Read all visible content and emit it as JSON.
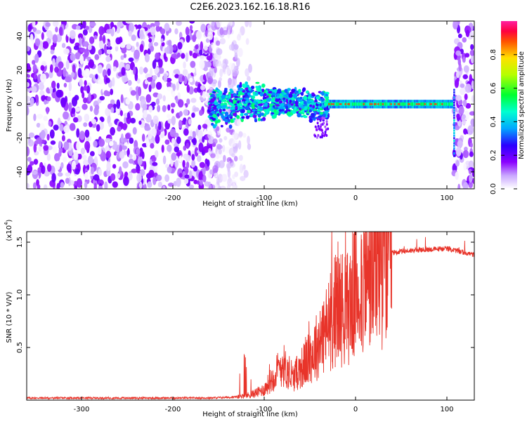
{
  "title": "C2E6.2023.162.16.18.R16",
  "chart_data": [
    {
      "type": "heatmap",
      "xlabel": "Height of straight line (km)",
      "ylabel": "Frequency (Hz)",
      "xlim": [
        -360,
        130
      ],
      "ylim": [
        -50,
        49
      ],
      "x_ticks": [
        -300,
        -200,
        -100,
        0,
        100
      ],
      "x_tick_labels": [
        "-300",
        "-200",
        "-100",
        "0",
        "100"
      ],
      "y_ticks": [
        -40,
        -20,
        0,
        20,
        40
      ],
      "y_tick_labels": [
        "-40",
        "-20",
        "0",
        "20",
        "40"
      ],
      "colorbar": {
        "label": "Normalized spectral amplitude",
        "range": [
          0,
          1
        ],
        "ticks": [
          0.0,
          0.2,
          0.4,
          0.6,
          0.8
        ],
        "tick_labels": [
          "0.0",
          "0.2",
          "0.4",
          "0.6",
          "0.8"
        ],
        "colormap": [
          "#ffffff",
          "#9b00ff",
          "#0000ff",
          "#00ffff",
          "#00ff00",
          "#ffff00",
          "#ff0000",
          "#ff00ff"
        ]
      },
      "regions": [
        {
          "x_range": [
            -360,
            -155
          ],
          "description_level": 0.15,
          "freq_spread": [
            -50,
            49
          ]
        },
        {
          "x_range": [
            -155,
            -110
          ],
          "description_level": 0.05,
          "freq_spread": [
            -50,
            49
          ]
        },
        {
          "x_range": [
            -155,
            -30
          ],
          "signal_band_center": 0,
          "level": 0.35
        },
        {
          "x_range": [
            -30,
            105
          ],
          "signal_band_center": 0,
          "level": 0.45
        },
        {
          "x_range": [
            108,
            130
          ],
          "description_level": 0.15,
          "freq_spread": [
            -50,
            49
          ]
        }
      ]
    },
    {
      "type": "line",
      "xlabel": "Height of straight line (km)",
      "ylabel": "SNR (10 * V/V)",
      "y_multiplier_label": "(x10",
      "y_multiplier_exp": "4",
      "xlim": [
        -360,
        130
      ],
      "ylim": [
        0,
        1.6
      ],
      "x_ticks": [
        -300,
        -200,
        -100,
        0,
        100
      ],
      "x_tick_labels": [
        "-300",
        "-200",
        "-100",
        "0",
        "100"
      ],
      "y_ticks": [
        0.5,
        1.0,
        1.5
      ],
      "y_tick_labels": [
        "0.5",
        "1.0",
        "1.5"
      ],
      "color": "#e8342a",
      "series": [
        {
          "x": [
            -360,
            -300,
            -250,
            -200,
            -160,
            -130,
            -115,
            -100,
            -90,
            -80,
            -70,
            -60,
            -50,
            -40,
            -30,
            -20,
            -10,
            0,
            10,
            20,
            30,
            40,
            60,
            80,
            100,
            110,
            120,
            130
          ],
          "values": [
            0.02,
            0.02,
            0.02,
            0.02,
            0.02,
            0.03,
            0.05,
            0.1,
            0.22,
            0.35,
            0.2,
            0.3,
            0.4,
            0.55,
            0.7,
            0.9,
            0.85,
            1.05,
            1.15,
            1.25,
            1.35,
            1.4,
            1.42,
            1.43,
            1.44,
            1.42,
            1.4,
            1.38
          ]
        }
      ]
    }
  ]
}
